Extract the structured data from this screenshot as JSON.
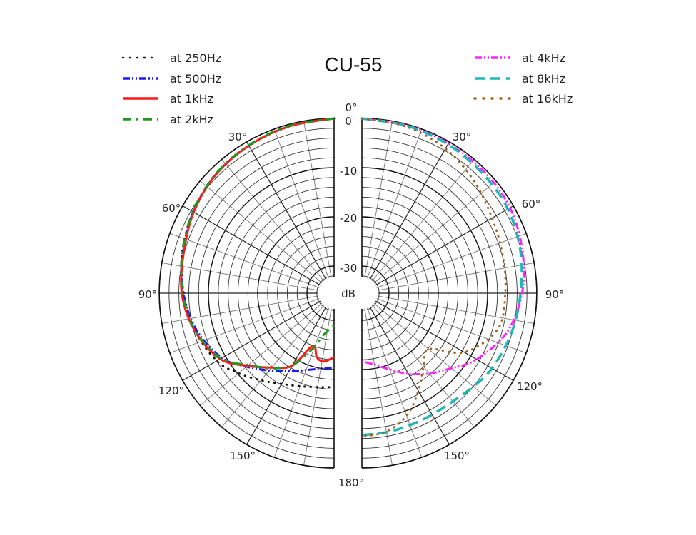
{
  "chart_data": {
    "type": "polar",
    "title": "CU-55",
    "radial_unit": "dB",
    "radial_ticks": [
      "0",
      "-10",
      "-20",
      "-30"
    ],
    "radial_range": [
      -33,
      0
    ],
    "radial_minor_step_db": 2,
    "angle_ticks": [
      "0°",
      "30°",
      "60°",
      "90°",
      "120°",
      "150°",
      "180°"
    ],
    "angle_minor_step_deg": 10,
    "halves": {
      "left": [
        "at 250Hz",
        "at 500Hz",
        "at 1kHz",
        "at 2kHz"
      ],
      "right": [
        "at 4kHz",
        "at 8kHz",
        "at 16kHz"
      ]
    },
    "angles": [
      0,
      15,
      30,
      45,
      60,
      75,
      90,
      105,
      120,
      130,
      140,
      150,
      158,
      165,
      172,
      180
    ],
    "series": [
      {
        "name": "at 250Hz",
        "side": "left",
        "color": "#111111",
        "style": "dotted",
        "values": [
          0,
          -0.4,
          -0.9,
          -1.5,
          -2.5,
          -3.6,
          -5.0,
          -6.3,
          -8.0,
          -10.2,
          -12.4,
          -14.2,
          -15.2,
          -15.8,
          -16.2,
          -16.4
        ]
      },
      {
        "name": "at 500Hz",
        "side": "left",
        "color": "#1a1aff",
        "style": "dashdotdot",
        "values": [
          0,
          -0.4,
          -0.9,
          -1.5,
          -2.5,
          -3.8,
          -4.9,
          -6.6,
          -9.2,
          -12.3,
          -15.0,
          -17.2,
          -18.6,
          -19.5,
          -20.1,
          -20.4
        ]
      },
      {
        "name": "at 1kHz",
        "side": "left",
        "color": "#ff1a1a",
        "style": "solid",
        "values": [
          0,
          -0.4,
          -0.9,
          -1.5,
          -2.6,
          -3.9,
          -4.6,
          -6.2,
          -8.8,
          -12.6,
          -15.8,
          -18.5,
          -24.0,
          -22.0,
          -21.5,
          -22.6
        ]
      },
      {
        "name": "at 2kHz",
        "side": "left",
        "color": "#1f9a1f",
        "style": "dashdot",
        "values": [
          0,
          -0.3,
          -0.8,
          -1.4,
          -2.4,
          -3.6,
          -4.8,
          -6.3,
          -9.0,
          -12.8,
          -15.6,
          -18.6,
          -23.0,
          -26.5,
          -28.0,
          -29.0
        ]
      },
      {
        "name": "at 4kHz",
        "side": "right",
        "color": "#ff22ff",
        "style": "dashdotdot",
        "values": [
          0,
          -0.2,
          -0.4,
          -0.5,
          -0.8,
          -1.8,
          -3.0,
          -5.0,
          -8.6,
          -11.8,
          -14.2,
          -16.6,
          -18.6,
          -20.0,
          -21.0,
          -21.7
        ]
      },
      {
        "name": "at 8kHz",
        "side": "right",
        "color": "#1fb6b6",
        "style": "dashed",
        "values": [
          0,
          -0.3,
          -0.6,
          -1.0,
          -1.3,
          -2.2,
          -3.3,
          -4.1,
          -5.0,
          -6.0,
          -6.8,
          -7.0,
          -7.0,
          -6.9,
          -6.8,
          -6.7
        ]
      },
      {
        "name": "at 16kHz",
        "side": "right",
        "color": "#a0601a",
        "style": "dotted",
        "values": [
          0,
          -0.5,
          -1.6,
          -3.3,
          -5.0,
          -5.9,
          -6.4,
          -7.0,
          -11.5,
          -17.8,
          -16.0,
          -12.6,
          -9.6,
          -7.8,
          -6.8,
          -6.4
        ]
      }
    ]
  },
  "legend": {
    "left": [
      {
        "label": "at 250Hz",
        "color": "#111111",
        "dash": "1,9",
        "width": 2.5,
        "cap": "round"
      },
      {
        "label": "at 500Hz",
        "color": "#1a1aff",
        "dash": "10,3,2,3,2,3",
        "width": 3.5,
        "cap": "butt"
      },
      {
        "label": "at 1kHz",
        "color": "#ff1a1a",
        "dash": "",
        "width": 3.5,
        "cap": "butt"
      },
      {
        "label": "at 2kHz",
        "color": "#1f9a1f",
        "dash": "12,7,3,7",
        "width": 3.5,
        "cap": "butt"
      }
    ],
    "right": [
      {
        "label": "at 4kHz",
        "color": "#ff22ff",
        "dash": "10,3,2,3,2,3",
        "width": 3.5,
        "cap": "butt"
      },
      {
        "label": "at 8kHz",
        "color": "#1fb6b6",
        "dash": "14,8",
        "width": 3.5,
        "cap": "butt"
      },
      {
        "label": "at 16kHz",
        "color": "#a0601a",
        "dash": "1,11",
        "width": 3.5,
        "cap": "round"
      }
    ]
  }
}
